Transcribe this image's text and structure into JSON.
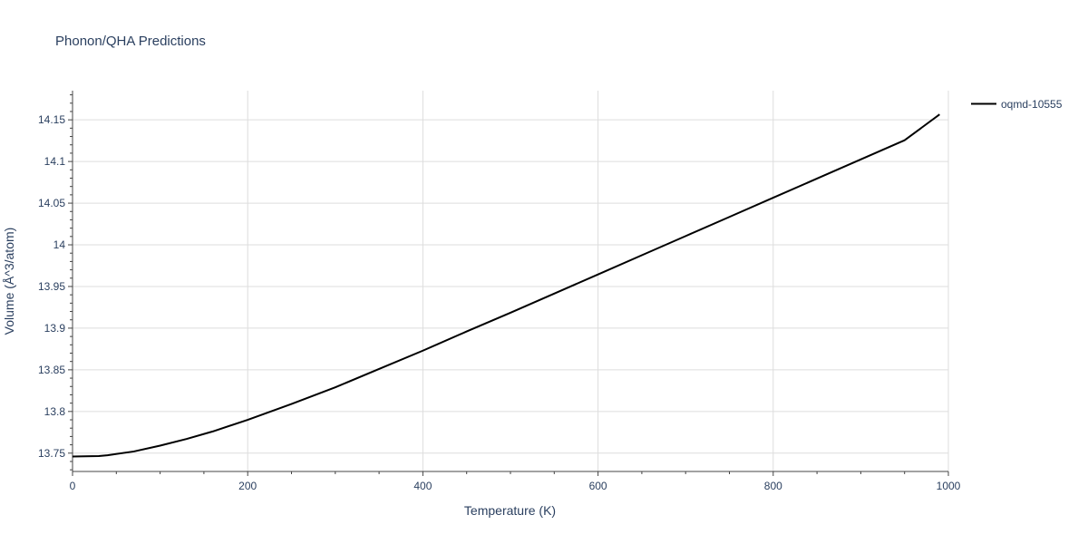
{
  "chart_data": {
    "type": "line",
    "title": "Phonon/QHA Predictions",
    "xlabel": "Temperature (K)",
    "ylabel": "Volume (Å^3/atom)",
    "xlim": [
      0,
      1000
    ],
    "ylim": [
      13.728,
      14.185
    ],
    "x_ticks": [
      0,
      200,
      400,
      600,
      800,
      1000
    ],
    "x_tick_labels": [
      "0",
      "200",
      "400",
      "600",
      "800",
      "1000"
    ],
    "y_ticks": [
      13.75,
      13.8,
      13.85,
      13.9,
      13.95,
      14.0,
      14.05,
      14.1,
      14.15
    ],
    "y_tick_labels": [
      "13.75",
      "13.8",
      "13.85",
      "13.9",
      "13.95",
      "14",
      "14.05",
      "14.1",
      "14.15"
    ],
    "grid": true,
    "legend_position": "top-right",
    "series": [
      {
        "name": "oqmd-10555",
        "color": "#000000",
        "x": [
          0,
          30,
          40,
          70,
          100,
          130,
          160,
          200,
          250,
          300,
          350,
          400,
          450,
          500,
          550,
          600,
          650,
          700,
          750,
          800,
          850,
          900,
          950,
          990
        ],
        "y": [
          13.746,
          13.7465,
          13.7475,
          13.752,
          13.759,
          13.767,
          13.776,
          13.79,
          13.809,
          13.829,
          13.851,
          13.873,
          13.896,
          13.9185,
          13.9415,
          13.9645,
          13.9875,
          14.0105,
          14.0335,
          14.0565,
          14.0795,
          14.1025,
          14.1255,
          14.1565
        ]
      }
    ]
  }
}
